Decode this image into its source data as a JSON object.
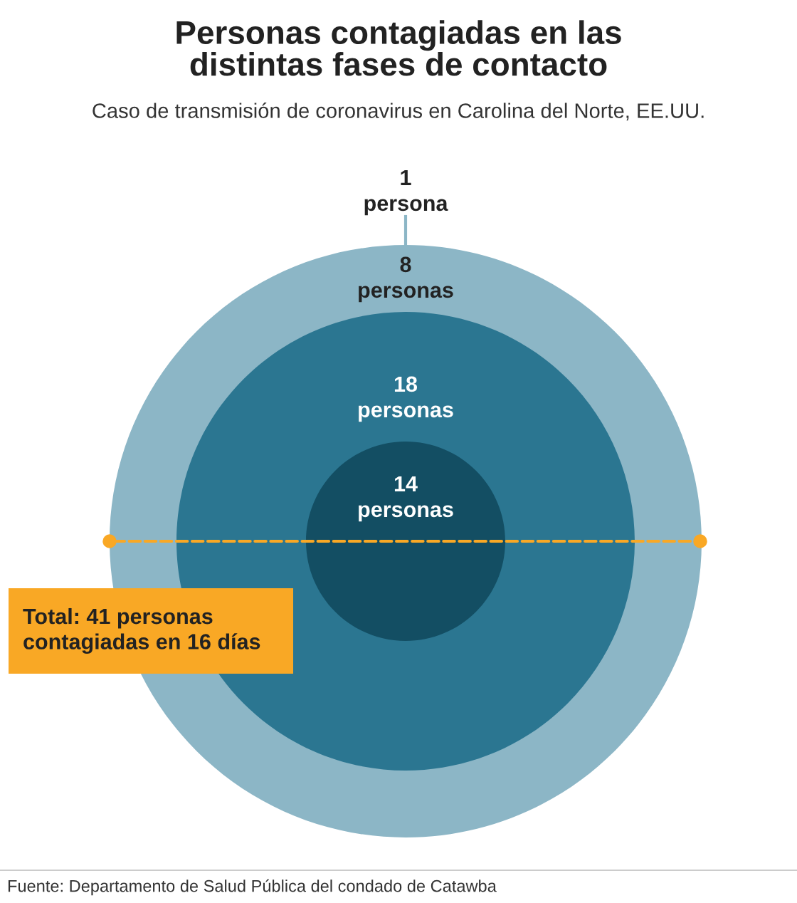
{
  "chart_data": {
    "type": "other",
    "title": "Personas contagiadas en las\ndistintas fases de contacto",
    "subtitle": "Caso de transmisión de coronavirus en Carolina del Norte, EE.UU.",
    "categories": [
      "persona",
      "personas",
      "personas",
      "personas"
    ],
    "values": [
      1,
      8,
      18,
      14
    ],
    "data_labels": true,
    "colors": [
      "#ffffff",
      "#8cb6c6",
      "#2b7691",
      "#134e63"
    ],
    "annotations": [
      "Total: 41 personas\ncontagiadas en 16 días",
      "Fuente: Departamento de Salud Pública del condado de Catawba"
    ]
  }
}
